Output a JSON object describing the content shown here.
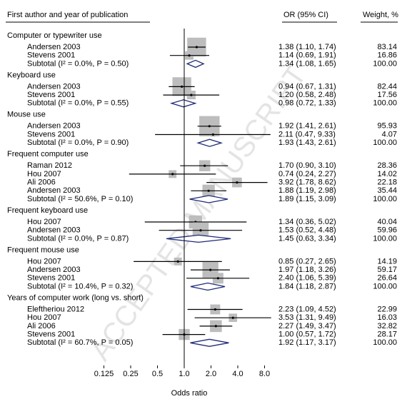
{
  "chart_data": {
    "type": "forest",
    "watermark": "ACCEPTED MANUSCRIPT",
    "header": {
      "study": "First author and year of publication",
      "or": "OR (95% CI)",
      "weight": "Weight, %"
    },
    "x_label": "Odds ratio",
    "log_scale": true,
    "xlim": [
      0.0625,
      16
    ],
    "xticks": [
      0.125,
      0.25,
      0.5,
      {
        "value": 1,
        "label": "1.0"
      },
      {
        "value": 2,
        "label": "2.0"
      },
      {
        "value": 4,
        "label": "4.0"
      },
      {
        "value": 8,
        "label": "8.0"
      }
    ],
    "square_color": "#bdbdbd",
    "diamond_color": "#1f2a78",
    "groups": [
      {
        "name": "Computer or typewriter use",
        "rows": [
          {
            "label": "Andersen 2003",
            "or": 1.38,
            "lo": 1.1,
            "hi": 1.74,
            "ci_label": "1.38 (1.10, 1.74)",
            "weight": 83.14
          },
          {
            "label": "Stevens 2001",
            "or": 1.14,
            "lo": 0.69,
            "hi": 1.91,
            "ci_label": "1.14 (0.69, 1.91)",
            "weight": 16.86
          }
        ],
        "subtotal": {
          "label": "Subtotal (I² = 0.0%, P = 0.50)",
          "or": 1.34,
          "lo": 1.08,
          "hi": 1.65,
          "ci_label": "1.34 (1.08, 1.65)",
          "weight": {
            "value": 100,
            "label": "100.00"
          }
        }
      },
      {
        "name": "Keyboard use",
        "rows": [
          {
            "label": "Andersen 2003",
            "or": 0.94,
            "lo": 0.67,
            "hi": 1.31,
            "ci_label": "0.94 (0.67, 1.31)",
            "weight": 82.44
          },
          {
            "label": "Stevens 2001",
            "or": 1.2,
            "lo": 0.58,
            "hi": 2.48,
            "ci_label": "1.20 (0.58, 2.48)",
            "weight": 17.56
          }
        ],
        "subtotal": {
          "label": "Subtotal (I² = 0.0%, P = 0.55)",
          "or": 0.98,
          "lo": 0.72,
          "hi": 1.33,
          "ci_label": "0.98 (0.72, 1.33)",
          "weight": {
            "value": 100,
            "label": "100.00"
          }
        }
      },
      {
        "name": "Mouse use",
        "rows": [
          {
            "label": "Andersen 2003",
            "or": 1.92,
            "lo": 1.41,
            "hi": 2.61,
            "ci_label": "1.92 (1.41, 2.61)",
            "weight": 95.93
          },
          {
            "label": "Stevens 2001",
            "or": 2.11,
            "lo": 0.47,
            "hi": 9.33,
            "ci_label": "2.11 (0.47, 9.33)",
            "weight": 4.07
          }
        ],
        "subtotal": {
          "label": "Subtotal (I² = 0.0%, P = 0.90)",
          "or": 1.93,
          "lo": 1.43,
          "hi": 2.61,
          "ci_label": "1.93 (1.43, 2.61)",
          "weight": {
            "value": 100,
            "label": "100.00"
          }
        }
      },
      {
        "name": "Frequent computer use",
        "rows": [
          {
            "label": "Raman 2012",
            "or": 1.7,
            "lo": 0.9,
            "hi": 3.1,
            "ci_label": "1.70 (0.90, 3.10)",
            "weight": 28.36
          },
          {
            "label": "Hou 2007",
            "or": 0.74,
            "lo": 0.24,
            "hi": 2.27,
            "ci_label": "0.74 (0.24, 2.27)",
            "weight": 14.02
          },
          {
            "label": "Ali 2006",
            "or": 3.92,
            "lo": 1.78,
            "hi": 8.62,
            "ci_label": "3.92 (1.78, 8.62)",
            "weight": 22.18
          },
          {
            "label": "Andersen 2003",
            "or": 1.88,
            "lo": 1.19,
            "hi": 2.98,
            "ci_label": "1.88 (1.19, 2.98)",
            "weight": 35.44
          }
        ],
        "subtotal": {
          "label": "Subtotal (I² = 50.6%, P = 0.10)",
          "or": 1.89,
          "lo": 1.15,
          "hi": 3.09,
          "ci_label": "1.89 (1.15, 3.09)",
          "weight": {
            "value": 100,
            "label": "100.00"
          }
        }
      },
      {
        "name": "Frequent keyboard use",
        "rows": [
          {
            "label": "Hou 2007",
            "or": 1.34,
            "lo": 0.36,
            "hi": 5.02,
            "ci_label": "1.34 (0.36, 5.02)",
            "weight": 40.04
          },
          {
            "label": "Andersen 2003",
            "or": 1.53,
            "lo": 0.52,
            "hi": 4.48,
            "ci_label": "1.53 (0.52, 4.48)",
            "weight": 59.96
          }
        ],
        "subtotal": {
          "label": "Subtotal (I² = 0.0%, P = 0.87)",
          "or": 1.45,
          "lo": 0.63,
          "hi": 3.34,
          "ci_label": "1.45 (0.63, 3.34)",
          "weight": {
            "value": 100,
            "label": "100.00"
          }
        }
      },
      {
        "name": "Frequent mouse use",
        "rows": [
          {
            "label": "Hou 2007",
            "or": 0.85,
            "lo": 0.27,
            "hi": 2.65,
            "ci_label": "0.85 (0.27, 2.65)",
            "weight": 14.19
          },
          {
            "label": "Andersen 2003",
            "or": 1.97,
            "lo": 1.18,
            "hi": 3.26,
            "ci_label": "1.97 (1.18, 3.26)",
            "weight": 59.17
          },
          {
            "label": "Stevens 2001",
            "or": 2.4,
            "lo": 1.06,
            "hi": 5.39,
            "ci_label": "2.40 (1.06, 5.39)",
            "weight": 26.64
          }
        ],
        "subtotal": {
          "label": "Subtotal (I² = 10.4%, P = 0.32)",
          "or": 1.84,
          "lo": 1.18,
          "hi": 2.87,
          "ci_label": "1.84 (1.18, 2.87)",
          "weight": {
            "value": 100,
            "label": "100.00"
          }
        }
      },
      {
        "name": "Years of computer work (long vs. short)",
        "rows": [
          {
            "label": "Eleftheriou 2012",
            "or": 2.23,
            "lo": 1.09,
            "hi": 4.52,
            "ci_label": "2.23 (1.09, 4.52)",
            "weight": 22.99
          },
          {
            "label": "Hou 2007",
            "or": 3.53,
            "lo": 1.31,
            "hi": 9.49,
            "ci_label": "3.53 (1.31, 9.49)",
            "weight": 16.03
          },
          {
            "label": "Ali 2006",
            "or": 2.27,
            "lo": 1.49,
            "hi": 3.47,
            "ci_label": "2.27 (1.49, 3.47)",
            "weight": 32.82
          },
          {
            "label": "Stevens 2001",
            "or": 1.0,
            "lo": 0.57,
            "hi": 1.72,
            "ci_label": "1.00 (0.57, 1.72)",
            "weight": 28.17
          }
        ],
        "subtotal": {
          "label": "Subtotal (I² = 60.7%, P = 0.05)",
          "or": 1.92,
          "lo": 1.17,
          "hi": 3.17,
          "ci_label": "1.92 (1.17, 3.17)",
          "weight": {
            "value": 100,
            "label": "100.00"
          }
        }
      }
    ]
  }
}
